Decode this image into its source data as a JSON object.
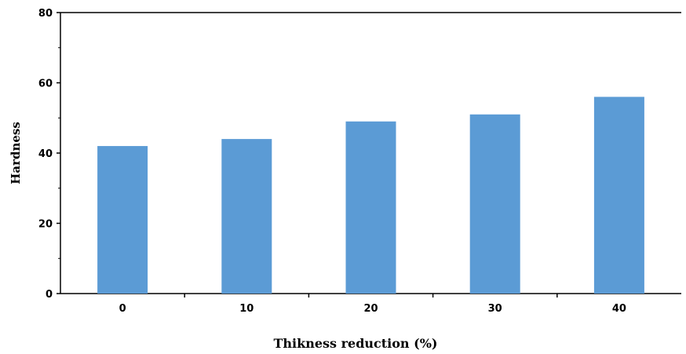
{
  "chart_data": {
    "type": "bar",
    "categories": [
      "0",
      "10",
      "20",
      "30",
      "40"
    ],
    "values": [
      42,
      44,
      49,
      51,
      56
    ],
    "xlabel": "Thikness reduction (%)",
    "ylabel": "Hardness",
    "ylim": [
      0,
      80
    ],
    "yticks": [
      "0",
      "20",
      "40",
      "60",
      "80"
    ],
    "grid": false,
    "legend": "none",
    "bar_color": "#5b9bd5"
  }
}
